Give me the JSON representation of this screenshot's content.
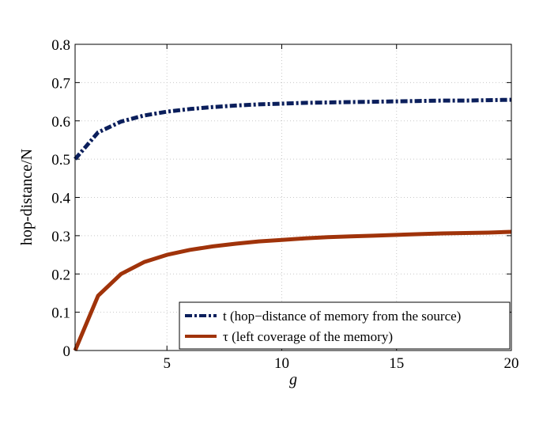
{
  "chart_data": {
    "type": "line",
    "title": "",
    "xlabel": "g",
    "ylabel": "hop-distance/N",
    "xlim": [
      1,
      20
    ],
    "ylim": [
      0,
      0.8
    ],
    "x_ticks": [
      5,
      10,
      15,
      20
    ],
    "y_ticks": [
      0,
      0.1,
      0.2,
      0.3,
      0.4,
      0.5,
      0.6,
      0.7,
      0.8
    ],
    "x_tick_labels": [
      "5",
      "10",
      "15",
      "20"
    ],
    "y_tick_labels": [
      "0",
      "0.1",
      "0.2",
      "0.3",
      "0.4",
      "0.5",
      "0.6",
      "0.7",
      "0.8"
    ],
    "grid": true,
    "legend_position": "bottom-right",
    "x": [
      1,
      2,
      3,
      4,
      5,
      6,
      7,
      8,
      9,
      10,
      11,
      12,
      13,
      14,
      15,
      16,
      17,
      18,
      19,
      20
    ],
    "series": [
      {
        "name": "t (hop−distance of memory from the source)",
        "color": "#0b1f5c",
        "style": "dash-dot",
        "values": [
          0.5,
          0.57,
          0.598,
          0.614,
          0.624,
          0.631,
          0.636,
          0.64,
          0.643,
          0.645,
          0.647,
          0.648,
          0.649,
          0.65,
          0.651,
          0.652,
          0.653,
          0.653,
          0.654,
          0.655
        ]
      },
      {
        "name": "τ (left coverage of the memory)",
        "color": "#a0330a",
        "style": "solid",
        "values": [
          0.0,
          0.143,
          0.2,
          0.231,
          0.25,
          0.263,
          0.272,
          0.279,
          0.285,
          0.289,
          0.293,
          0.296,
          0.298,
          0.3,
          0.302,
          0.304,
          0.306,
          0.307,
          0.308,
          0.31
        ]
      }
    ]
  }
}
